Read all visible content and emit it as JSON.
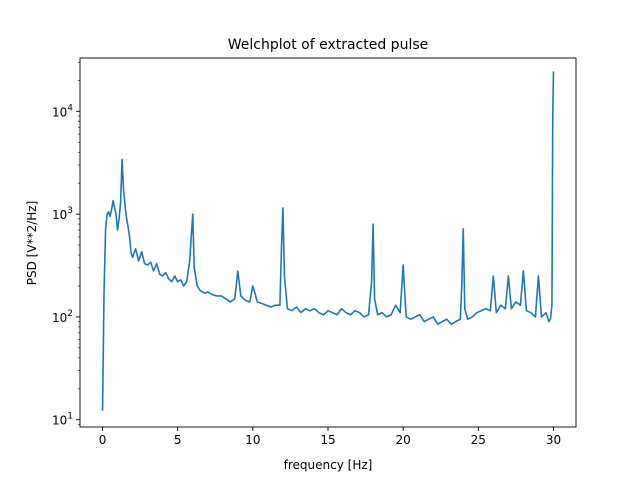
{
  "chart_data": {
    "type": "line",
    "title": "Welchplot of extracted pulse",
    "xlabel": "frequency [Hz]",
    "ylabel": "PSD [V**2/Hz]",
    "yscale": "log",
    "xlim": [
      -1.5,
      31.5
    ],
    "ylim": [
      8.5,
      33000
    ],
    "grid": false,
    "x_ticks": [
      0,
      5,
      10,
      15,
      20,
      25,
      30
    ],
    "x_tick_labels": [
      "0",
      "5",
      "10",
      "15",
      "20",
      "25",
      "30"
    ],
    "y_ticks": [
      10,
      100,
      1000,
      10000
    ],
    "y_tick_base": "10",
    "y_tick_exponents": [
      "1",
      "2",
      "3",
      "4"
    ],
    "series": [
      {
        "color": "#1f77b4",
        "x": [
          0,
          0.1,
          0.2,
          0.3,
          0.4,
          0.5,
          0.6,
          0.7,
          0.8,
          0.9,
          1.0,
          1.1,
          1.2,
          1.3,
          1.4,
          1.5,
          1.6,
          1.7,
          1.8,
          1.9,
          2.0,
          2.2,
          2.4,
          2.6,
          2.8,
          3.0,
          3.2,
          3.4,
          3.6,
          3.8,
          4.0,
          4.2,
          4.4,
          4.6,
          4.8,
          5.0,
          5.2,
          5.4,
          5.6,
          5.8,
          5.9,
          6.0,
          6.1,
          6.3,
          6.5,
          6.8,
          7.0,
          7.3,
          7.6,
          7.9,
          8.2,
          8.5,
          8.8,
          9.0,
          9.2,
          9.5,
          9.8,
          10.0,
          10.3,
          10.6,
          10.9,
          11.2,
          11.5,
          11.8,
          11.9,
          12.0,
          12.1,
          12.3,
          12.6,
          12.9,
          13.2,
          13.5,
          13.8,
          14.1,
          14.4,
          14.7,
          15.0,
          15.3,
          15.6,
          15.9,
          16.2,
          16.5,
          16.8,
          17.1,
          17.4,
          17.7,
          17.9,
          18.0,
          18.1,
          18.3,
          18.6,
          18.9,
          19.2,
          19.5,
          19.8,
          20.0,
          20.2,
          20.5,
          20.8,
          21.1,
          21.4,
          21.7,
          22.0,
          22.3,
          22.6,
          22.9,
          23.2,
          23.5,
          23.8,
          23.9,
          24.0,
          24.1,
          24.3,
          24.6,
          24.9,
          25.2,
          25.5,
          25.8,
          26.0,
          26.2,
          26.5,
          26.8,
          27.0,
          27.2,
          27.5,
          27.8,
          28.0,
          28.2,
          28.5,
          28.8,
          29.0,
          29.2,
          29.5,
          29.7,
          29.8,
          29.9,
          29.95,
          30.0
        ],
        "values": [
          12.5,
          180,
          700,
          1000,
          1050,
          950,
          1100,
          1350,
          1150,
          1000,
          700,
          900,
          1300,
          3400,
          1700,
          1200,
          900,
          750,
          600,
          420,
          380,
          460,
          350,
          430,
          330,
          320,
          340,
          280,
          330,
          260,
          250,
          270,
          235,
          220,
          250,
          220,
          230,
          200,
          220,
          350,
          600,
          1000,
          300,
          200,
          180,
          170,
          175,
          165,
          160,
          160,
          150,
          140,
          150,
          280,
          160,
          145,
          140,
          200,
          140,
          135,
          130,
          125,
          130,
          130,
          450,
          1150,
          250,
          120,
          115,
          125,
          110,
          120,
          115,
          120,
          110,
          105,
          115,
          110,
          105,
          120,
          110,
          105,
          115,
          110,
          100,
          105,
          220,
          800,
          150,
          105,
          110,
          100,
          105,
          130,
          110,
          320,
          100,
          95,
          100,
          105,
          90,
          95,
          100,
          85,
          90,
          95,
          85,
          90,
          95,
          200,
          720,
          120,
          95,
          100,
          110,
          115,
          120,
          115,
          250,
          110,
          130,
          120,
          250,
          120,
          140,
          130,
          280,
          115,
          110,
          100,
          250,
          100,
          110,
          90,
          95,
          130,
          8000,
          24000
        ]
      }
    ]
  }
}
